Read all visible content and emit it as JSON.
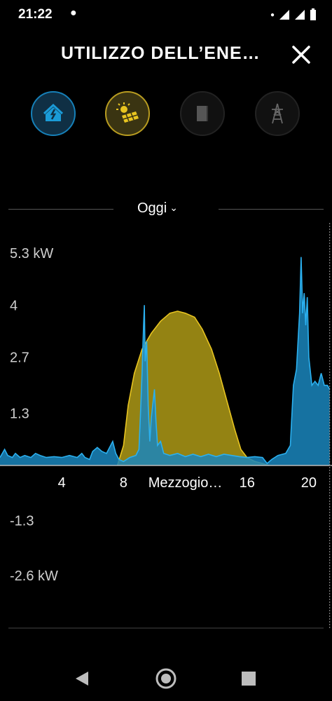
{
  "status_bar": {
    "time": "21:22"
  },
  "header": {
    "title": "UTILIZZO DELL’ENE…"
  },
  "source_buttons": [
    {
      "name": "casa",
      "icon": "home-icon",
      "color": "#1a9bd7",
      "selected": true
    },
    {
      "name": "solare",
      "icon": "solar-panel-icon",
      "color": "#e8c420",
      "selected": true
    },
    {
      "name": "batteria",
      "icon": "battery-icon",
      "color": "#444444",
      "selected": false
    },
    {
      "name": "rete",
      "icon": "power-pylon-icon",
      "color": "#444444",
      "selected": false
    }
  ],
  "period": {
    "label": "Oggi"
  },
  "colors": {
    "home": "#1a9bd7",
    "solar": "#b59a17",
    "solar_line": "#e8c420",
    "axis": "#888888",
    "background": "#000000"
  },
  "chart_data": {
    "type": "area",
    "x_unit": "hour",
    "xlim": [
      0,
      21.5
    ],
    "ylim": [
      -2.6,
      5.3
    ],
    "y_tick_labels": [
      {
        "value": 5.3,
        "label": "5.3 kW"
      },
      {
        "value": 4.0,
        "label": "4"
      },
      {
        "value": 2.7,
        "label": "2.7"
      },
      {
        "value": 1.3,
        "label": "1.3"
      },
      {
        "value": -1.3,
        "label": "-1.3"
      },
      {
        "value": -2.6,
        "label": "-2.6 kW"
      }
    ],
    "x_tick_labels": [
      {
        "value": 4,
        "label": "4"
      },
      {
        "value": 8,
        "label": "8"
      },
      {
        "value": 12,
        "label": "Mezzogio…"
      },
      {
        "value": 16,
        "label": "16"
      },
      {
        "value": 20,
        "label": "20"
      }
    ],
    "current_time": 21.35,
    "series": [
      {
        "key": "solar",
        "fill": "#9c8a14",
        "line": "#e8c420",
        "points": [
          [
            7.6,
            0
          ],
          [
            8.0,
            0.5
          ],
          [
            8.3,
            1.5
          ],
          [
            8.7,
            2.3
          ],
          [
            9.2,
            2.9
          ],
          [
            9.8,
            3.3
          ],
          [
            10.4,
            3.6
          ],
          [
            11.0,
            3.8
          ],
          [
            11.5,
            3.85
          ],
          [
            12.0,
            3.8
          ],
          [
            12.6,
            3.7
          ],
          [
            13.1,
            3.4
          ],
          [
            13.7,
            2.9
          ],
          [
            14.2,
            2.3
          ],
          [
            14.7,
            1.6
          ],
          [
            15.2,
            0.9
          ],
          [
            15.6,
            0.4
          ],
          [
            16.0,
            0.2
          ],
          [
            16.5,
            0.1
          ],
          [
            17.0,
            0.05
          ],
          [
            17.4,
            0
          ]
        ]
      },
      {
        "key": "home",
        "fill": "#1a86bd",
        "line": "#2bb0ef",
        "points": [
          [
            0,
            0.2
          ],
          [
            0.3,
            0.4
          ],
          [
            0.5,
            0.25
          ],
          [
            0.8,
            0.2
          ],
          [
            1.0,
            0.3
          ],
          [
            1.3,
            0.2
          ],
          [
            1.6,
            0.25
          ],
          [
            2.0,
            0.2
          ],
          [
            2.3,
            0.3
          ],
          [
            2.6,
            0.25
          ],
          [
            3.0,
            0.2
          ],
          [
            3.5,
            0.22
          ],
          [
            4.0,
            0.2
          ],
          [
            4.5,
            0.25
          ],
          [
            5.0,
            0.2
          ],
          [
            5.3,
            0.3
          ],
          [
            5.5,
            0.2
          ],
          [
            5.8,
            0.15
          ],
          [
            6.0,
            0.35
          ],
          [
            6.3,
            0.45
          ],
          [
            6.6,
            0.35
          ],
          [
            6.9,
            0.3
          ],
          [
            7.1,
            0.45
          ],
          [
            7.3,
            0.6
          ],
          [
            7.5,
            0.3
          ],
          [
            7.7,
            0.15
          ],
          [
            8.0,
            0.1
          ],
          [
            8.4,
            0.2
          ],
          [
            8.8,
            0.25
          ],
          [
            9.0,
            0.4
          ],
          [
            9.1,
            1.3
          ],
          [
            9.2,
            2.3
          ],
          [
            9.3,
            3.5
          ],
          [
            9.35,
            4.0
          ],
          [
            9.4,
            2.6
          ],
          [
            9.5,
            3.1
          ],
          [
            9.6,
            1.5
          ],
          [
            9.7,
            0.6
          ],
          [
            9.8,
            1.2
          ],
          [
            10.0,
            1.9
          ],
          [
            10.1,
            1.1
          ],
          [
            10.2,
            0.5
          ],
          [
            10.4,
            0.6
          ],
          [
            10.6,
            0.3
          ],
          [
            11.0,
            0.25
          ],
          [
            11.5,
            0.3
          ],
          [
            12.0,
            0.22
          ],
          [
            12.5,
            0.28
          ],
          [
            13.0,
            0.22
          ],
          [
            13.5,
            0.28
          ],
          [
            14.0,
            0.22
          ],
          [
            14.5,
            0.28
          ],
          [
            15.0,
            0.25
          ],
          [
            15.5,
            0.22
          ],
          [
            16.0,
            0.2
          ],
          [
            16.5,
            0.22
          ],
          [
            17.0,
            0.2
          ],
          [
            17.3,
            0.05
          ],
          [
            17.6,
            0.15
          ],
          [
            18.0,
            0.25
          ],
          [
            18.5,
            0.3
          ],
          [
            18.8,
            0.5
          ],
          [
            19.0,
            2.0
          ],
          [
            19.2,
            2.4
          ],
          [
            19.4,
            3.8
          ],
          [
            19.5,
            5.2
          ],
          [
            19.6,
            3.8
          ],
          [
            19.7,
            4.3
          ],
          [
            19.8,
            3.5
          ],
          [
            19.9,
            4.2
          ],
          [
            20.0,
            2.7
          ],
          [
            20.2,
            2.0
          ],
          [
            20.4,
            2.1
          ],
          [
            20.6,
            2.0
          ],
          [
            20.8,
            2.3
          ],
          [
            21.0,
            2.0
          ],
          [
            21.2,
            2.0
          ],
          [
            21.35,
            1.9
          ]
        ]
      }
    ]
  }
}
